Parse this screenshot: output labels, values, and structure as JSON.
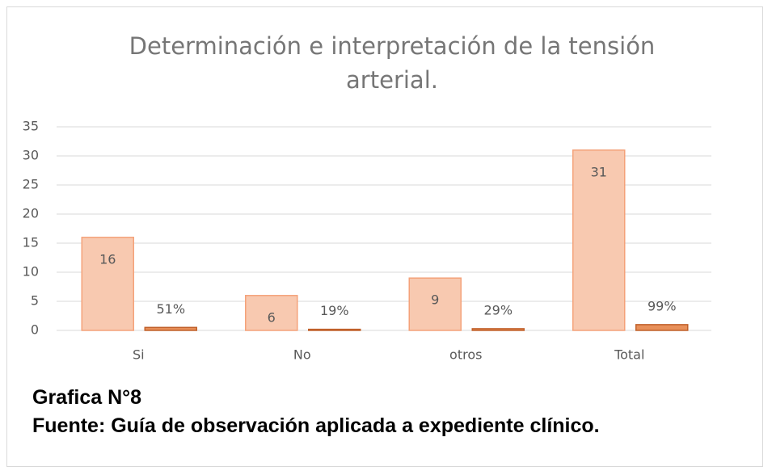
{
  "chart_data": {
    "type": "bar",
    "title": "Determinación e interpretación de la tensión arterial.",
    "categories": [
      "Si",
      "No",
      "otros",
      "Total"
    ],
    "series": [
      {
        "color": "#f8c9b0",
        "values": [
          16,
          6,
          9,
          31
        ]
      },
      {
        "color": "#e8905a",
        "values": [
          0.51,
          0.19,
          0.29,
          0.99
        ],
        "value_labels": [
          "51%",
          "19%",
          "29%",
          "99%"
        ]
      }
    ],
    "ylim": [
      0,
      35
    ],
    "yticks": [
      0,
      5,
      10,
      15,
      20,
      25,
      30,
      35
    ],
    "grid": true,
    "caption": [
      "Grafica N°8",
      "Fuente: Guía de observación aplicada a expediente clínico."
    ]
  }
}
